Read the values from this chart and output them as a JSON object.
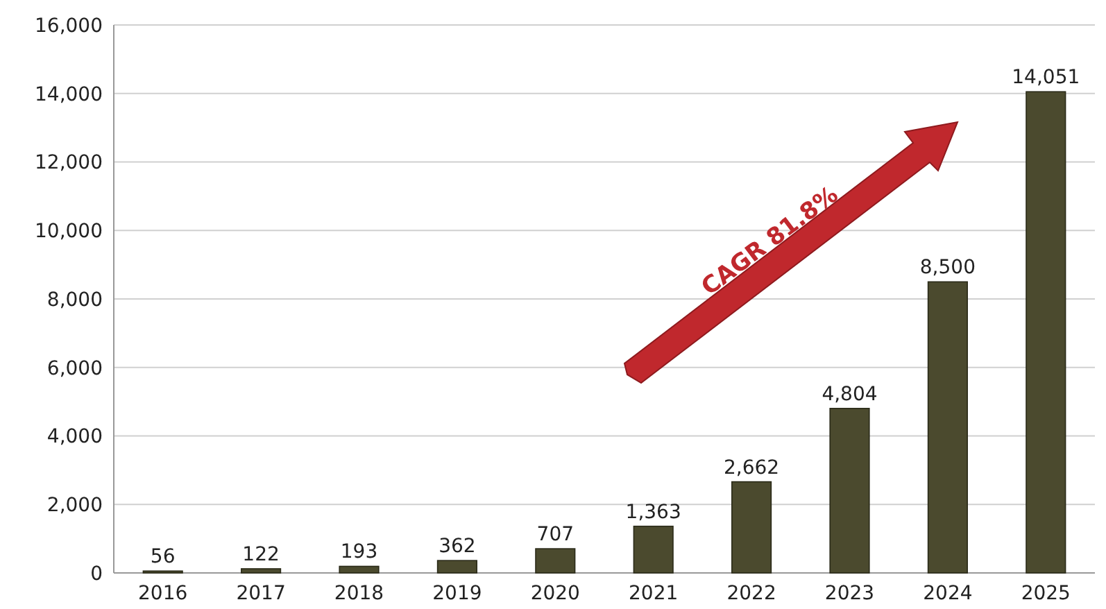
{
  "chart_data": {
    "type": "bar",
    "categories": [
      "2016",
      "2017",
      "2018",
      "2019",
      "2020",
      "2021",
      "2022",
      "2023",
      "2024",
      "2025"
    ],
    "values": [
      56,
      122,
      193,
      362,
      707,
      1363,
      2662,
      4804,
      8500,
      14051
    ],
    "color": "#4b4a2e",
    "ylim": [
      0,
      16000
    ],
    "yticks": [
      0,
      {
        "value": 2000,
        "label": "2,000"
      },
      {
        "value": 4000,
        "label": "4,000"
      },
      {
        "value": 6000,
        "label": "6,000"
      },
      {
        "value": 8000,
        "label": "8,000"
      },
      {
        "value": 10000,
        "label": "10,000"
      },
      {
        "value": 12000,
        "label": "12,000"
      },
      {
        "value": 14000,
        "label": "14,000"
      },
      {
        "value": 16000,
        "label": "16,000"
      }
    ],
    "value_labels": [
      "56",
      "122",
      "193",
      "362",
      "707",
      "1,363",
      "2,662",
      "4,804",
      "8,500",
      "14,051"
    ],
    "grid": "y",
    "annotations": [
      "CAGR 81.8%"
    ]
  }
}
